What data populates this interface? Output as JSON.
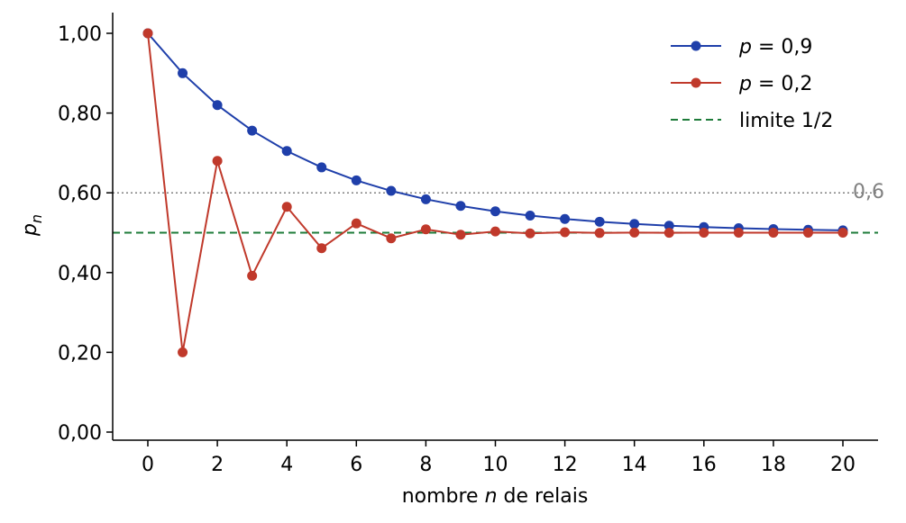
{
  "chart_data": {
    "type": "line",
    "xlabel_pre": "nombre ",
    "xlabel_var": "n",
    "xlabel_post": " de relais",
    "ylabel_var": "p",
    "ylabel_sub": "n",
    "xlim": [
      -1,
      21
    ],
    "ylim": [
      -0.02,
      1.05
    ],
    "xticks": [
      0,
      2,
      4,
      6,
      8,
      10,
      12,
      14,
      16,
      18,
      20
    ],
    "yticks": [
      0,
      0.2,
      0.4,
      0.6,
      0.8,
      1.0
    ],
    "ytick_labels": [
      "0,00",
      "0,20",
      "0,40",
      "0,60",
      "0,80",
      "1,00"
    ],
    "x": [
      0,
      1,
      2,
      3,
      4,
      5,
      6,
      7,
      8,
      9,
      10,
      11,
      12,
      13,
      14,
      15,
      16,
      17,
      18,
      19,
      20
    ],
    "series": [
      {
        "name_var": "p",
        "name_rest": " = 0,9",
        "color": "#1f3faa",
        "values": [
          1.0,
          0.9,
          0.82,
          0.756,
          0.7048,
          0.6638,
          0.6311,
          0.6049,
          0.5839,
          0.5671,
          0.5537,
          0.5429,
          0.5344,
          0.5275,
          0.522,
          0.5176,
          0.5141,
          0.5113,
          0.509,
          0.5072,
          0.5058
        ]
      },
      {
        "name_var": "p",
        "name_rest": " = 0,2",
        "color": "#c0392b",
        "values": [
          1.0,
          0.2,
          0.68,
          0.392,
          0.5648,
          0.4611,
          0.5233,
          0.486,
          0.5084,
          0.495,
          0.503,
          0.4982,
          0.5011,
          0.4993,
          0.5004,
          0.4998,
          0.5001,
          0.4999,
          0.5,
          0.5,
          0.5
        ]
      }
    ],
    "reference_lines": [
      {
        "name": "limite 1/2",
        "y": 0.5,
        "color": "#1e7b3a",
        "style": "dashed",
        "in_legend": true
      },
      {
        "label": "0,6",
        "y": 0.6,
        "color": "#808080",
        "style": "dotted",
        "in_legend": false
      }
    ],
    "legend_position": "top-right",
    "grid": false
  }
}
